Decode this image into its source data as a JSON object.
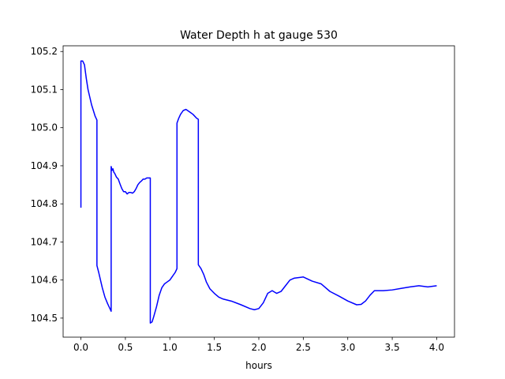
{
  "chart_data": {
    "type": "line",
    "title": "Water Depth h at gauge 530",
    "xlabel": "hours",
    "ylabel": "",
    "xlim": [
      -0.2,
      4.2
    ],
    "ylim": [
      104.45,
      105.215
    ],
    "xticks": [
      0.0,
      0.5,
      1.0,
      1.5,
      2.0,
      2.5,
      3.0,
      3.5,
      4.0
    ],
    "xtick_labels": [
      "0.0",
      "0.5",
      "1.0",
      "1.5",
      "2.0",
      "2.5",
      "3.0",
      "3.5",
      "4.0"
    ],
    "yticks": [
      104.5,
      104.6,
      104.7,
      104.8,
      104.9,
      105.0,
      105.1,
      105.2
    ],
    "ytick_labels": [
      "104.5",
      "104.6",
      "104.7",
      "104.8",
      "104.9",
      "105.0",
      "105.1",
      "105.2"
    ],
    "grid": false,
    "series": [
      {
        "color": "#0000ff",
        "x": [
          0.0,
          0.0,
          0.02,
          0.04,
          0.06,
          0.08,
          0.1,
          0.12,
          0.14,
          0.16,
          0.18,
          0.18,
          0.2,
          0.22,
          0.24,
          0.27,
          0.3,
          0.34,
          0.34,
          0.35,
          0.36,
          0.37,
          0.38,
          0.4,
          0.42,
          0.44,
          0.46,
          0.48,
          0.5,
          0.52,
          0.54,
          0.56,
          0.58,
          0.6,
          0.62,
          0.64,
          0.66,
          0.68,
          0.7,
          0.72,
          0.74,
          0.76,
          0.78,
          0.78,
          0.8,
          0.82,
          0.85,
          0.88,
          0.91,
          0.94,
          0.97,
          1.0,
          1.03,
          1.06,
          1.08,
          1.08,
          1.1,
          1.12,
          1.15,
          1.18,
          1.2,
          1.23,
          1.26,
          1.3,
          1.32,
          1.32,
          1.35,
          1.38,
          1.41,
          1.45,
          1.5,
          1.55,
          1.6,
          1.7,
          1.8,
          1.9,
          1.95,
          2.0,
          2.05,
          2.1,
          2.15,
          2.2,
          2.25,
          2.3,
          2.35,
          2.4,
          2.5,
          2.6,
          2.7,
          2.8,
          2.9,
          3.0,
          3.1,
          3.15,
          3.2,
          3.25,
          3.3,
          3.35,
          3.4,
          3.5,
          3.6,
          3.7,
          3.8,
          3.9,
          4.0
        ],
        "y": [
          104.79,
          105.175,
          105.175,
          105.165,
          105.13,
          105.1,
          105.08,
          105.06,
          105.045,
          105.03,
          105.02,
          104.638,
          104.62,
          104.6,
          104.58,
          104.555,
          104.538,
          104.518,
          104.898,
          104.888,
          104.892,
          104.883,
          104.88,
          104.87,
          104.865,
          104.852,
          104.84,
          104.832,
          104.832,
          104.826,
          104.83,
          104.83,
          104.828,
          104.832,
          104.84,
          104.85,
          104.856,
          104.86,
          104.865,
          104.865,
          104.868,
          104.868,
          104.868,
          104.487,
          104.49,
          104.505,
          104.53,
          104.56,
          104.58,
          104.59,
          104.595,
          104.6,
          104.61,
          104.62,
          104.63,
          105.012,
          105.025,
          105.035,
          105.045,
          105.048,
          105.045,
          105.04,
          105.035,
          105.025,
          105.022,
          104.64,
          104.63,
          104.615,
          104.595,
          104.577,
          104.565,
          104.555,
          104.55,
          104.544,
          104.535,
          104.525,
          104.522,
          104.525,
          104.54,
          104.565,
          104.572,
          104.565,
          104.57,
          104.585,
          104.6,
          104.605,
          104.608,
          104.597,
          104.59,
          104.57,
          104.558,
          104.545,
          104.535,
          104.536,
          104.545,
          104.56,
          104.572,
          104.572,
          104.572,
          104.574,
          104.578,
          104.582,
          104.585,
          104.582,
          104.585
        ]
      }
    ]
  }
}
